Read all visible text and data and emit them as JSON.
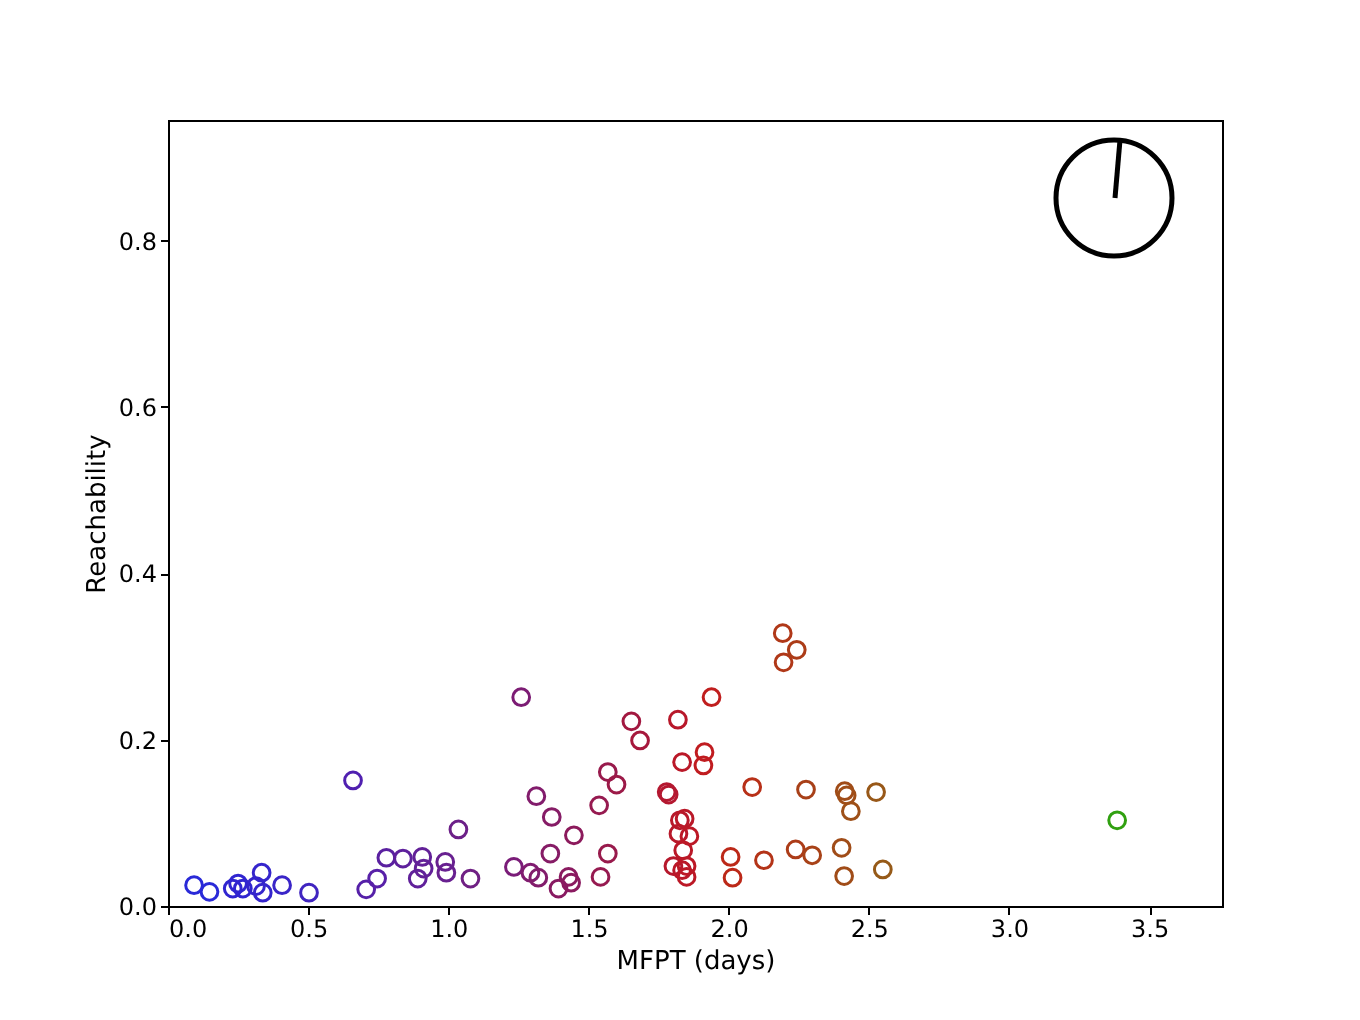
{
  "chart_data": {
    "type": "scatter",
    "xlabel": "MFPT (days)",
    "ylabel": "Reachability",
    "marker": "circle",
    "grid": false,
    "xlim": [
      0,
      3.76
    ],
    "ylim": [
      0,
      0.945
    ],
    "xticks": [
      {
        "value": 0,
        "label": "0.0"
      },
      0.5,
      {
        "value": 1,
        "label": "1.0"
      },
      1.5,
      {
        "value": 2,
        "label": "2.0"
      },
      2.5,
      {
        "value": 3,
        "label": "3.0"
      },
      3.5
    ],
    "yticks": [
      {
        "value": 0,
        "label": "0.0"
      },
      0.2,
      0.4,
      0.6,
      0.8
    ],
    "x": [
      0.093,
      0.148,
      0.231,
      0.25,
      0.267,
      0.314,
      0.334,
      0.338,
      0.407,
      0.503,
      0.66,
      0.707,
      0.746,
      0.779,
      0.838,
      0.891,
      0.907,
      0.912,
      0.989,
      0.993,
      1.036,
      1.079,
      1.234,
      1.26,
      1.293,
      1.314,
      1.321,
      1.364,
      1.369,
      1.393,
      1.429,
      1.438,
      1.448,
      1.538,
      1.543,
      1.569,
      1.569,
      1.6,
      1.653,
      1.684,
      1.779,
      1.786,
      1.803,
      1.819,
      1.821,
      1.826,
      1.834,
      1.834,
      1.838,
      1.843,
      1.85,
      1.85,
      1.86,
      1.91,
      1.914,
      1.939,
      2.007,
      2.014,
      2.084,
      2.126,
      2.193,
      2.196,
      2.239,
      2.243,
      2.276,
      2.298,
      2.403,
      2.412,
      2.414,
      2.421,
      2.436,
      2.526,
      2.55,
      3.386
    ],
    "values": [
      0.025,
      0.017,
      0.021,
      0.027,
      0.021,
      0.024,
      0.04,
      0.016,
      0.025,
      0.016,
      0.151,
      0.02,
      0.033,
      0.058,
      0.057,
      0.033,
      0.059,
      0.045,
      0.053,
      0.04,
      0.092,
      0.033,
      0.047,
      0.251,
      0.04,
      0.132,
      0.034,
      0.063,
      0.107,
      0.021,
      0.035,
      0.028,
      0.085,
      0.121,
      0.035,
      0.063,
      0.161,
      0.146,
      0.222,
      0.199,
      0.137,
      0.134,
      0.048,
      0.224,
      0.087,
      0.103,
      0.173,
      0.043,
      0.067,
      0.105,
      0.048,
      0.035,
      0.084,
      0.169,
      0.185,
      0.251,
      0.059,
      0.034,
      0.143,
      0.055,
      0.328,
      0.293,
      0.068,
      0.308,
      0.14,
      0.061,
      0.07,
      0.036,
      0.138,
      0.133,
      0.114,
      0.137,
      0.044,
      0.103
    ],
    "colors": [
      "#2a2ad8",
      "#2a2ad8",
      "#3025d0",
      "#3025d0",
      "#3025d0",
      "#3525cc",
      "#3525cc",
      "#3525cc",
      "#3a25c8",
      "#4025c0",
      "#5020b0",
      "#5520a8",
      "#5820a8",
      "#5a20a0",
      "#5e209c",
      "#60209a",
      "#622098",
      "#622098",
      "#682090",
      "#682090",
      "#6c2088",
      "#702084",
      "#7a1c78",
      "#7c1c74",
      "#801c70",
      "#821c6c",
      "#821c6c",
      "#861c66",
      "#861c66",
      "#881a62",
      "#8a1a60",
      "#8a1a60",
      "#8c1a5c",
      "#961a50",
      "#961a50",
      "#981a4c",
      "#981a4c",
      "#9c1a48",
      "#a21840",
      "#a6183c",
      "#b41830",
      "#b41830",
      "#b6182c",
      "#b8182a",
      "#b8182a",
      "#b8182a",
      "#ba1828",
      "#ba1828",
      "#ba1828",
      "#ba1828",
      "#bc1826",
      "#bc1826",
      "#bc1826",
      "#c01c20",
      "#c01c20",
      "#c01e1e",
      "#bc2818",
      "#bc2818",
      "#b83018",
      "#b43418",
      "#b03818",
      "#b03818",
      "#ac3c18",
      "#ac3c18",
      "#a84018",
      "#a84218",
      "#a04c18",
      "#a04c18",
      "#a04c18",
      "#a04e18",
      "#9e5018",
      "#985818",
      "#965a18",
      "#30a010"
    ]
  }
}
